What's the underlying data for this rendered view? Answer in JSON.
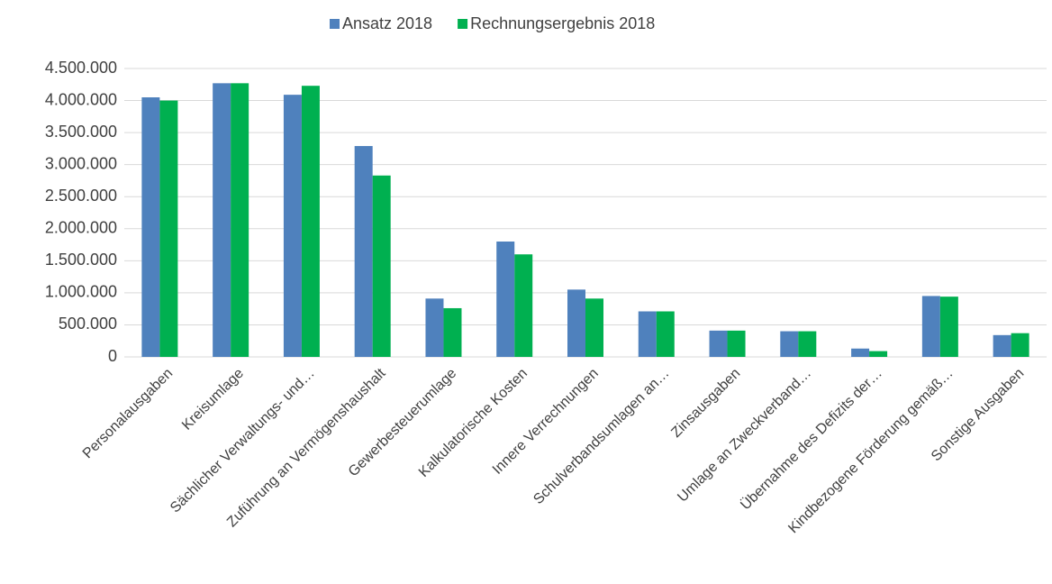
{
  "chart_data": {
    "type": "bar",
    "categories": [
      "Personalausgaben",
      "Kreisumlage",
      "Sächlicher Verwaltungs- und…",
      "Zuführung an Vermögenshaushalt",
      "Gewerbesteuerumlage",
      "Kalkulatorische Kosten",
      "Innere Verrechnungen",
      "Schulverbandsumlagen an…",
      "Zinsausgaben",
      "Umlage an Zweckverband…",
      "Übernahme des Defizits der…",
      "Kindbezogene Förderung gemäß…",
      "Sonstige Ausgaben"
    ],
    "series": [
      {
        "name": "Ansatz 2018",
        "color": "#4f81bd",
        "values": [
          4050000,
          4270000,
          4090000,
          3290000,
          910000,
          1800000,
          1050000,
          710000,
          410000,
          400000,
          130000,
          950000,
          340000
        ]
      },
      {
        "name": "Rechnungsergebnis 2018",
        "color": "#00b050",
        "values": [
          4000000,
          4270000,
          4230000,
          2830000,
          760000,
          1600000,
          910000,
          710000,
          410000,
          400000,
          90000,
          940000,
          370000
        ]
      }
    ],
    "ylim": [
      0,
      4500000
    ],
    "yticks": [
      0,
      {
        "value": 500000,
        "label": "500.000"
      },
      {
        "value": 1000000,
        "label": "1.000.000"
      },
      {
        "value": 1500000,
        "label": "1.500.000"
      },
      {
        "value": 2000000,
        "label": "2.000.000"
      },
      {
        "value": 2500000,
        "label": "2.500.000"
      },
      {
        "value": 3000000,
        "label": "3.000.000"
      },
      {
        "value": 3500000,
        "label": "3.500.000"
      },
      {
        "value": 4000000,
        "label": "4.000.000"
      },
      {
        "value": 4500000,
        "label": "4.500.000"
      }
    ],
    "grid": true,
    "legend": "top"
  }
}
